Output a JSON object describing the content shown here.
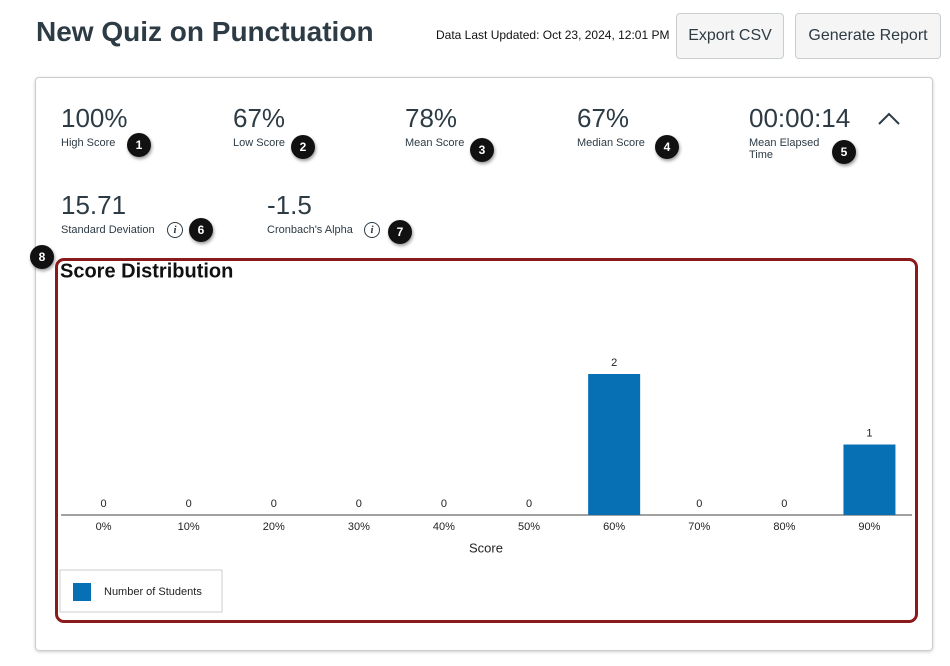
{
  "header": {
    "title": "New Quiz on Punctuation",
    "updated": "Data Last Updated: Oct 23, 2024, 12:01 PM",
    "buttons": [
      "Export CSV",
      "Generate Report"
    ]
  },
  "stats": [
    {
      "value": "100%",
      "label": "High Score"
    },
    {
      "value": "67%",
      "label": "Low Score"
    },
    {
      "value": "78%",
      "label": "Mean Score"
    },
    {
      "value": "67%",
      "label": "Median Score"
    },
    {
      "value": "00:00:14",
      "label": "Mean Elapsed Time"
    },
    {
      "value": "15.71",
      "label": "Standard Deviation"
    },
    {
      "value": "-1.5",
      "label": "Cronbach's Alpha"
    }
  ],
  "callouts": [
    1,
    2,
    3,
    4,
    5,
    6,
    7,
    8
  ],
  "chart_data": {
    "type": "bar",
    "title": "Score Distribution",
    "x_label": "Score",
    "categories": [
      "0%",
      "10%",
      "20%",
      "30%",
      "40%",
      "50%",
      "60%",
      "70%",
      "80%",
      "90%"
    ],
    "series": [
      {
        "name": "Number of Students",
        "color": "#0770b5",
        "values": [
          0,
          0,
          0,
          0,
          0,
          0,
          2,
          0,
          0,
          1
        ]
      }
    ]
  }
}
